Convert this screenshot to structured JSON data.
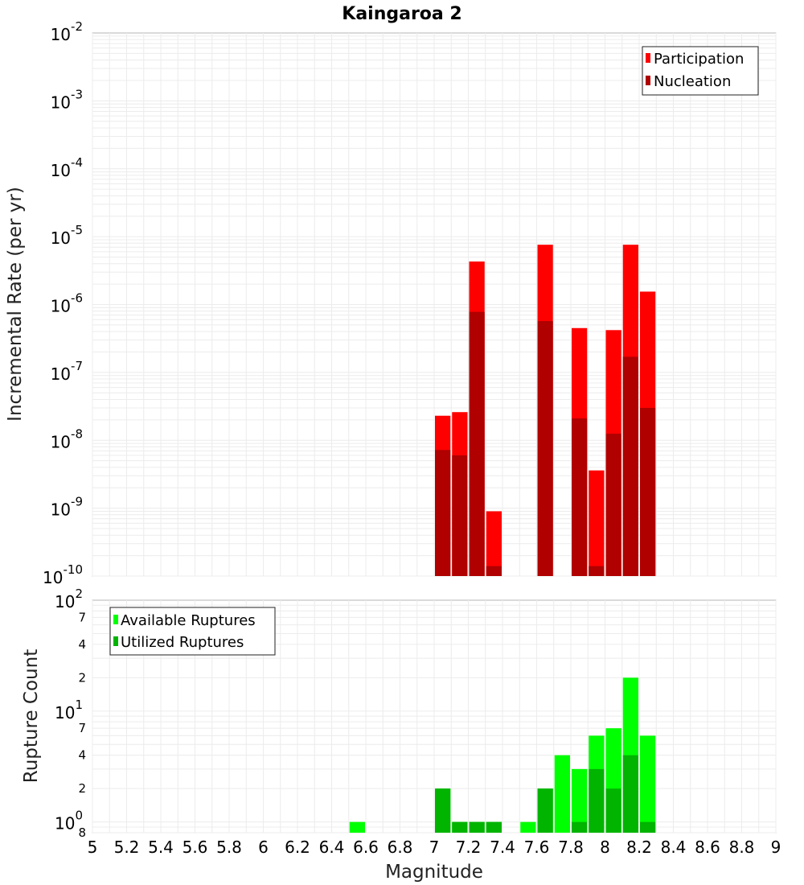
{
  "chart_data": [
    {
      "type": "bar",
      "title": "Kaingaroa 2",
      "ylabel": "Incremental Rate (per yr)",
      "xlabel": "",
      "y_scale": "log",
      "ylim": [
        1e-10,
        0.01
      ],
      "xlim": [
        5,
        9
      ],
      "legend_position": "top-right",
      "y_ticks": [
        {
          "base": "10",
          "exp": "-10",
          "value": 1e-10
        },
        {
          "base": "10",
          "exp": "-9",
          "value": 1e-09
        },
        {
          "base": "10",
          "exp": "-8",
          "value": 1e-08
        },
        {
          "base": "10",
          "exp": "-7",
          "value": 1e-07
        },
        {
          "base": "10",
          "exp": "-6",
          "value": 1e-06
        },
        {
          "base": "10",
          "exp": "-5",
          "value": 1e-05
        },
        {
          "base": "10",
          "exp": "-4",
          "value": 0.0001
        },
        {
          "base": "10",
          "exp": "-3",
          "value": 0.001
        },
        {
          "base": "10",
          "exp": "-2",
          "value": 0.01
        }
      ],
      "series": [
        {
          "name": "Participation",
          "color": "#ff0000",
          "points": [
            {
              "x": 7.05,
              "y": 2.3e-08
            },
            {
              "x": 7.15,
              "y": 2.6e-08
            },
            {
              "x": 7.25,
              "y": 4.3e-06
            },
            {
              "x": 7.35,
              "y": 9e-10
            },
            {
              "x": 7.65,
              "y": 7.6e-06
            },
            {
              "x": 7.85,
              "y": 4.5e-07
            },
            {
              "x": 7.95,
              "y": 3.6e-09
            },
            {
              "x": 8.05,
              "y": 4.2e-07
            },
            {
              "x": 8.15,
              "y": 7.6e-06
            },
            {
              "x": 8.25,
              "y": 1.55e-06
            }
          ]
        },
        {
          "name": "Nucleation",
          "color": "#b00000",
          "points": [
            {
              "x": 7.05,
              "y": 7.2e-09
            },
            {
              "x": 7.15,
              "y": 6e-09
            },
            {
              "x": 7.25,
              "y": 7.8e-07
            },
            {
              "x": 7.35,
              "y": 1.4e-10
            },
            {
              "x": 7.65,
              "y": 5.7e-07
            },
            {
              "x": 7.85,
              "y": 2.1e-08
            },
            {
              "x": 7.95,
              "y": 1.4e-10
            },
            {
              "x": 8.05,
              "y": 1.25e-08
            },
            {
              "x": 8.15,
              "y": 1.7e-07
            },
            {
              "x": 8.25,
              "y": 3e-08
            }
          ]
        }
      ]
    },
    {
      "type": "bar",
      "title": "",
      "ylabel": "Rupture Count",
      "xlabel": "Magnitude",
      "y_scale": "log",
      "ylim": [
        0.8,
        100
      ],
      "xlim": [
        5,
        9
      ],
      "legend_position": "top-left",
      "x_ticks": [
        "5",
        "5.2",
        "5.4",
        "5.6",
        "5.8",
        "6",
        "6.2",
        "6.4",
        "6.6",
        "6.8",
        "7",
        "7.2",
        "7.4",
        "7.6",
        "7.8",
        "8",
        "8.2",
        "8.4",
        "8.6",
        "8.8",
        "9"
      ],
      "y_major_ticks": [
        {
          "base": "10",
          "exp": "0",
          "value": 1
        },
        {
          "base": "10",
          "exp": "1",
          "value": 10
        },
        {
          "base": "10",
          "exp": "2",
          "value": 100
        }
      ],
      "y_minor_ticks": [
        {
          "label": "8",
          "value": 0.8
        },
        {
          "label": "2",
          "value": 2
        },
        {
          "label": "4",
          "value": 4
        },
        {
          "label": "7",
          "value": 7
        },
        {
          "label": "2",
          "value": 20
        },
        {
          "label": "4",
          "value": 40
        },
        {
          "label": "7",
          "value": 70
        }
      ],
      "series": [
        {
          "name": "Available Ruptures",
          "color": "#00ff00",
          "points": [
            {
              "x": 6.55,
              "y": 1
            },
            {
              "x": 7.05,
              "y": 2
            },
            {
              "x": 7.15,
              "y": 1
            },
            {
              "x": 7.25,
              "y": 1
            },
            {
              "x": 7.35,
              "y": 1
            },
            {
              "x": 7.55,
              "y": 1
            },
            {
              "x": 7.65,
              "y": 2
            },
            {
              "x": 7.75,
              "y": 4
            },
            {
              "x": 7.85,
              "y": 3
            },
            {
              "x": 7.95,
              "y": 6
            },
            {
              "x": 8.05,
              "y": 7
            },
            {
              "x": 8.15,
              "y": 20
            },
            {
              "x": 8.25,
              "y": 6
            }
          ]
        },
        {
          "name": "Utilized Ruptures",
          "color": "#00b400",
          "points": [
            {
              "x": 7.05,
              "y": 2
            },
            {
              "x": 7.15,
              "y": 1
            },
            {
              "x": 7.25,
              "y": 1
            },
            {
              "x": 7.35,
              "y": 1
            },
            {
              "x": 7.65,
              "y": 2
            },
            {
              "x": 7.85,
              "y": 1
            },
            {
              "x": 7.95,
              "y": 3
            },
            {
              "x": 8.05,
              "y": 2
            },
            {
              "x": 8.15,
              "y": 4
            },
            {
              "x": 8.25,
              "y": 1
            }
          ]
        }
      ]
    }
  ]
}
